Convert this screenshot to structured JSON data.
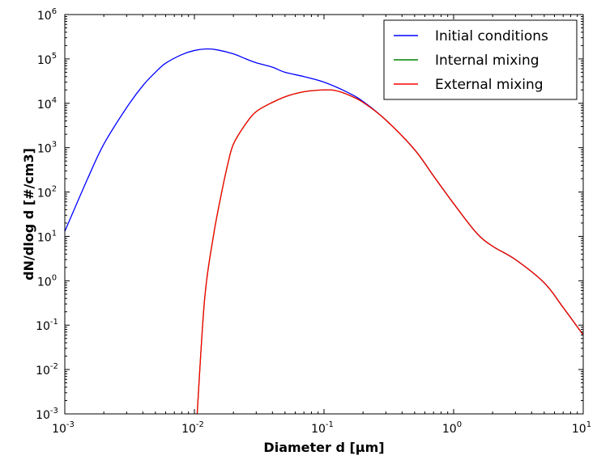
{
  "chart_data": {
    "type": "line",
    "xlabel": "Diameter d [μm]",
    "ylabel": "dN/dlog d [#/cm3]",
    "xscale": "log",
    "yscale": "log",
    "xlim": [
      0.001,
      10
    ],
    "ylim": [
      0.001,
      1000000
    ],
    "grid": false,
    "legend_position": "top-right",
    "x_ticks": [
      {
        "base": "10",
        "exp": "-3",
        "value": 0.001
      },
      {
        "base": "10",
        "exp": "-2",
        "value": 0.01
      },
      {
        "base": "10",
        "exp": "-1",
        "value": 0.1
      },
      {
        "base": "10",
        "exp": "0",
        "value": 1
      },
      {
        "base": "10",
        "exp": "1",
        "value": 10
      }
    ],
    "y_ticks": [
      {
        "base": "10",
        "exp": "-3",
        "value": 0.001
      },
      {
        "base": "10",
        "exp": "-2",
        "value": 0.01
      },
      {
        "base": "10",
        "exp": "-1",
        "value": 0.1
      },
      {
        "base": "10",
        "exp": "0",
        "value": 1
      },
      {
        "base": "10",
        "exp": "1",
        "value": 10
      },
      {
        "base": "10",
        "exp": "2",
        "value": 100
      },
      {
        "base": "10",
        "exp": "3",
        "value": 1000
      },
      {
        "base": "10",
        "exp": "4",
        "value": 10000
      },
      {
        "base": "10",
        "exp": "5",
        "value": 100000
      },
      {
        "base": "10",
        "exp": "6",
        "value": 1000000
      }
    ],
    "series": [
      {
        "name": "Initial conditions",
        "color": "#0000ff",
        "x": [
          0.001,
          0.0015,
          0.002,
          0.003,
          0.004,
          0.005,
          0.006,
          0.008,
          0.01,
          0.0125,
          0.015,
          0.02,
          0.025,
          0.03,
          0.04,
          0.05,
          0.07,
          0.1,
          0.15,
          0.2,
          0.3,
          0.5,
          0.7,
          1,
          1.5,
          2,
          3,
          5,
          7,
          10
        ],
        "y": [
          13,
          200,
          1200,
          8000,
          25000,
          50000,
          80000,
          125000,
          155000,
          168000,
          160000,
          130000,
          100000,
          82000,
          65000,
          50000,
          40000,
          30000,
          18000,
          11000,
          4200,
          900,
          230,
          55,
          12,
          6,
          3,
          0.9,
          0.25,
          0.06
        ]
      },
      {
        "name": "Internal mixing",
        "color": "#008000",
        "x": [
          0.0105,
          0.012,
          0.014,
          0.016,
          0.018,
          0.02,
          0.025,
          0.03,
          0.04,
          0.05,
          0.06,
          0.07,
          0.08,
          0.1,
          0.12,
          0.15,
          0.2,
          0.3,
          0.5,
          0.7,
          1,
          1.5,
          2,
          3,
          5,
          7,
          10
        ],
        "y": [
          0.001,
          0.4,
          10,
          80,
          400,
          1200,
          3500,
          6500,
          10500,
          14000,
          16500,
          18200,
          19200,
          20000,
          19600,
          16000,
          10500,
          4200,
          900,
          230,
          55,
          12,
          6,
          3,
          0.9,
          0.25,
          0.06
        ]
      },
      {
        "name": "External mixing",
        "color": "#ff0000",
        "x": [
          0.0105,
          0.012,
          0.014,
          0.016,
          0.018,
          0.02,
          0.025,
          0.03,
          0.04,
          0.05,
          0.06,
          0.07,
          0.08,
          0.1,
          0.12,
          0.15,
          0.2,
          0.3,
          0.5,
          0.7,
          1,
          1.5,
          2,
          3,
          5,
          7,
          10
        ],
        "y": [
          0.001,
          0.4,
          10,
          80,
          400,
          1200,
          3500,
          6500,
          10500,
          14000,
          16500,
          18200,
          19200,
          20000,
          19600,
          16000,
          10500,
          4200,
          900,
          230,
          55,
          12,
          6,
          3,
          0.9,
          0.25,
          0.06
        ]
      }
    ]
  }
}
